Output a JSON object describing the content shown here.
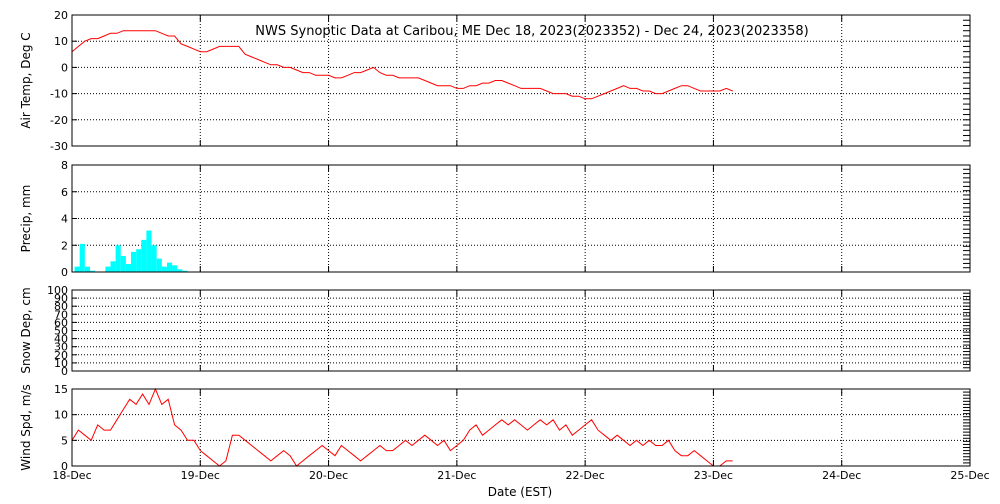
{
  "title": "NWS Synoptic Data at Caribou, ME    Dec 18, 2023(2023352) - Dec 24, 2023(2023358)",
  "xlabel": "Date (EST)",
  "x_tick_labels": [
    "18-Dec",
    "19-Dec",
    "20-Dec",
    "21-Dec",
    "22-Dec",
    "23-Dec",
    "24-Dec",
    "25-Dec"
  ],
  "colors": {
    "line": "#ff0000",
    "bars": "#00ffff",
    "axes": "#000000",
    "grid": "#000000"
  },
  "chart_data": [
    {
      "type": "line",
      "name": "air-temp",
      "ylabel": "Air Temp, Deg C",
      "ylim": [
        -30,
        20
      ],
      "yticks": [
        20,
        10,
        0,
        -10,
        -20,
        -30
      ],
      "x_unit": "days since 18-Dec 00:00 EST",
      "grid": true,
      "x": [
        0,
        0.05,
        0.1,
        0.15,
        0.2,
        0.25,
        0.3,
        0.35,
        0.4,
        0.45,
        0.5,
        0.55,
        0.6,
        0.65,
        0.7,
        0.75,
        0.8,
        0.85,
        0.9,
        0.95,
        1.0,
        1.05,
        1.1,
        1.15,
        1.2,
        1.25,
        1.3,
        1.35,
        1.4,
        1.45,
        1.5,
        1.55,
        1.6,
        1.65,
        1.7,
        1.75,
        1.8,
        1.85,
        1.9,
        1.95,
        2.0,
        2.05,
        2.1,
        2.15,
        2.2,
        2.25,
        2.3,
        2.35,
        2.4,
        2.45,
        2.5,
        2.55,
        2.6,
        2.65,
        2.7,
        2.75,
        2.8,
        2.85,
        2.9,
        2.95,
        3.0,
        3.05,
        3.1,
        3.15,
        3.2,
        3.25,
        3.3,
        3.35,
        3.4,
        3.45,
        3.5,
        3.55,
        3.6,
        3.65,
        3.7,
        3.75,
        3.8,
        3.85,
        3.9,
        3.95,
        4.0,
        4.05,
        4.1,
        4.15,
        4.2,
        4.25,
        4.3,
        4.35,
        4.4,
        4.45,
        4.5,
        4.55,
        4.6,
        4.65,
        4.7,
        4.75,
        4.8,
        4.85,
        4.9,
        4.95,
        5.0,
        5.05,
        5.1,
        5.15
      ],
      "y": [
        6,
        8,
        10,
        11,
        11,
        12,
        13,
        13,
        14,
        14,
        14,
        14,
        14,
        14,
        13,
        12,
        12,
        9,
        8,
        7,
        6,
        6,
        7,
        8,
        8,
        8,
        8,
        5,
        4,
        3,
        2,
        1,
        1,
        0,
        0,
        -1,
        -2,
        -2,
        -3,
        -3,
        -3,
        -4,
        -4,
        -3,
        -2,
        -2,
        -1,
        0,
        -2,
        -3,
        -3,
        -4,
        -4,
        -4,
        -4,
        -5,
        -6,
        -7,
        -7,
        -7,
        -8,
        -8,
        -7,
        -7,
        -6,
        -6,
        -5,
        -5,
        -6,
        -7,
        -8,
        -8,
        -8,
        -8,
        -9,
        -10,
        -10,
        -10,
        -11,
        -11,
        -12,
        -12,
        -11,
        -10,
        -9,
        -8,
        -7,
        -8,
        -8,
        -9,
        -9,
        -10,
        -10,
        -9,
        -8,
        -7,
        -7,
        -8,
        -9,
        -9,
        -9,
        -9,
        -8,
        -9
      ]
    },
    {
      "type": "bar",
      "name": "precip",
      "ylabel": "Precip, mm",
      "ylim": [
        0,
        8
      ],
      "yticks": [
        8,
        6,
        4,
        2,
        0
      ],
      "x_unit": "days since 18-Dec 00:00 EST",
      "grid": true,
      "x": [
        0.04,
        0.08,
        0.12,
        0.16,
        0.2,
        0.24,
        0.28,
        0.32,
        0.36,
        0.4,
        0.44,
        0.48,
        0.52,
        0.56,
        0.6,
        0.64,
        0.68,
        0.72,
        0.76,
        0.8,
        0.84,
        0.88
      ],
      "values": [
        0.4,
        2.1,
        0.4,
        0.1,
        0,
        0,
        0.4,
        0.8,
        2.0,
        1.2,
        0.6,
        1.5,
        1.7,
        2.4,
        3.1,
        2.0,
        1.0,
        0.4,
        0.7,
        0.5,
        0.2,
        0.1
      ]
    },
    {
      "type": "line",
      "name": "snow-depth",
      "ylabel": "Snow Dep, cm",
      "ylim": [
        0,
        100
      ],
      "yticks": [
        100,
        90,
        80,
        70,
        60,
        50,
        40,
        30,
        20,
        10,
        0
      ],
      "grid": true,
      "x": [],
      "y": []
    },
    {
      "type": "line",
      "name": "wind-speed",
      "ylabel": "Wind Spd, m/s",
      "ylim": [
        0,
        15
      ],
      "yticks": [
        15,
        10,
        5,
        0
      ],
      "x_unit": "days since 18-Dec 00:00 EST",
      "grid": true,
      "x": [
        0,
        0.05,
        0.1,
        0.15,
        0.2,
        0.25,
        0.3,
        0.35,
        0.4,
        0.45,
        0.5,
        0.55,
        0.6,
        0.65,
        0.7,
        0.75,
        0.8,
        0.85,
        0.9,
        0.95,
        1.0,
        1.05,
        1.1,
        1.15,
        1.2,
        1.25,
        1.3,
        1.35,
        1.4,
        1.45,
        1.5,
        1.55,
        1.6,
        1.65,
        1.7,
        1.75,
        1.8,
        1.85,
        1.9,
        1.95,
        2.0,
        2.05,
        2.1,
        2.15,
        2.2,
        2.25,
        2.3,
        2.35,
        2.4,
        2.45,
        2.5,
        2.55,
        2.6,
        2.65,
        2.7,
        2.75,
        2.8,
        2.85,
        2.9,
        2.95,
        3.0,
        3.05,
        3.1,
        3.15,
        3.2,
        3.25,
        3.3,
        3.35,
        3.4,
        3.45,
        3.5,
        3.55,
        3.6,
        3.65,
        3.7,
        3.75,
        3.8,
        3.85,
        3.9,
        3.95,
        4.0,
        4.05,
        4.1,
        4.15,
        4.2,
        4.25,
        4.3,
        4.35,
        4.4,
        4.45,
        4.5,
        4.55,
        4.6,
        4.65,
        4.7,
        4.75,
        4.8,
        4.85,
        4.9,
        4.95,
        5.0,
        5.05,
        5.1,
        5.15
      ],
      "y": [
        5,
        7,
        6,
        5,
        8,
        7,
        7,
        9,
        11,
        13,
        12,
        14,
        12,
        15,
        12,
        13,
        8,
        7,
        5,
        5,
        3,
        2,
        1,
        0,
        1,
        6,
        6,
        5,
        4,
        3,
        2,
        1,
        2,
        3,
        2,
        0,
        1,
        2,
        3,
        4,
        3,
        2,
        4,
        3,
        2,
        1,
        2,
        3,
        4,
        3,
        3,
        4,
        5,
        4,
        5,
        6,
        5,
        4,
        5,
        3,
        4,
        5,
        7,
        8,
        6,
        7,
        8,
        9,
        8,
        9,
        8,
        7,
        8,
        9,
        8,
        9,
        7,
        8,
        6,
        7,
        8,
        9,
        7,
        6,
        5,
        6,
        5,
        4,
        5,
        4,
        5,
        4,
        4,
        5,
        3,
        2,
        2,
        3,
        2,
        1,
        0,
        0,
        1,
        1
      ]
    }
  ]
}
